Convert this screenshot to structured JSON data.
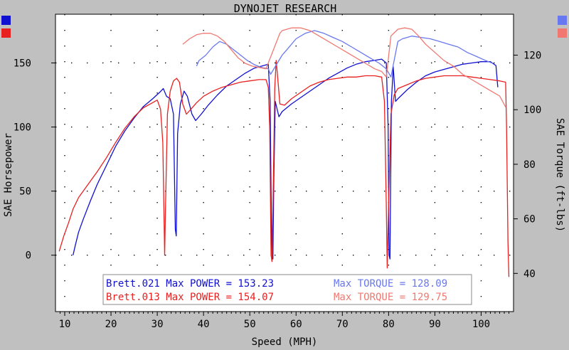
{
  "chart_data": {
    "type": "line",
    "title": "DYNOJET RESEARCH",
    "xlabel": "Speed (MPH)",
    "ylabel_left": "SAE Horsepower",
    "ylabel_right": "SAE Torque (ft-lbs)",
    "xlim": [
      8,
      107
    ],
    "ylim_left": [
      -44,
      188
    ],
    "ylim_right": [
      26,
      135
    ],
    "x_ticks": [
      10,
      20,
      30,
      40,
      50,
      60,
      70,
      80,
      90,
      100
    ],
    "y_ticks_left": [
      0,
      50,
      100,
      150
    ],
    "y_ticks_right": [
      40,
      60,
      80,
      100,
      120
    ],
    "grid": true,
    "colors": {
      "run021_power": "#1010d0",
      "run013_power": "#e82020",
      "run021_torque": "#6878f0",
      "run013_torque": "#f07870",
      "plot_bg": "#ffffff",
      "outer_bg": "#c0c0c0"
    },
    "legend": [
      {
        "run": "Brett.021",
        "power_text": "Max POWER = 153.23",
        "torque_text": "Max TORQUE = 128.09"
      },
      {
        "run": "Brett.013",
        "power_text": "Max POWER = 154.07",
        "torque_text": "Max TORQUE = 129.75"
      }
    ],
    "series": [
      {
        "axis": "left",
        "color": "#1010d0",
        "points": [
          [
            11.8,
            0
          ],
          [
            12.3,
            8
          ],
          [
            13,
            18
          ],
          [
            14,
            28
          ],
          [
            15.5,
            42
          ],
          [
            17,
            55
          ],
          [
            19,
            70
          ],
          [
            21,
            85
          ],
          [
            23,
            97
          ],
          [
            25,
            107
          ],
          [
            27,
            116
          ],
          [
            29,
            122
          ],
          [
            30.5,
            127
          ],
          [
            31.3,
            130
          ],
          [
            32,
            124
          ],
          [
            32.8,
            122
          ],
          [
            33.5,
            110
          ],
          [
            33.9,
            20
          ],
          [
            34.1,
            15
          ],
          [
            34.4,
            95
          ],
          [
            35,
            118
          ],
          [
            35.8,
            128
          ],
          [
            36.5,
            124
          ],
          [
            37.5,
            110
          ],
          [
            38.3,
            105
          ],
          [
            39.5,
            110
          ],
          [
            41,
            117
          ],
          [
            43,
            125
          ],
          [
            45,
            132
          ],
          [
            47,
            137
          ],
          [
            49,
            142
          ],
          [
            51,
            146
          ],
          [
            53,
            148
          ],
          [
            54,
            149
          ],
          [
            54.4,
            120
          ],
          [
            54.6,
            50
          ],
          [
            54.8,
            -2
          ],
          [
            55,
            -3
          ],
          [
            55.2,
            60
          ],
          [
            55.5,
            120
          ],
          [
            56.3,
            108
          ],
          [
            57,
            112
          ],
          [
            59,
            118
          ],
          [
            61,
            123
          ],
          [
            63,
            128
          ],
          [
            65,
            133
          ],
          [
            67,
            138
          ],
          [
            69,
            142
          ],
          [
            71,
            146
          ],
          [
            73,
            149
          ],
          [
            75,
            151
          ],
          [
            77,
            152
          ],
          [
            78.5,
            153
          ],
          [
            79.5,
            150
          ],
          [
            79.9,
            100
          ],
          [
            80.1,
            0
          ],
          [
            80.3,
            -3
          ],
          [
            80.6,
            120
          ],
          [
            81,
            147
          ],
          [
            81.5,
            120
          ],
          [
            82,
            122
          ],
          [
            84,
            129
          ],
          [
            86,
            135
          ],
          [
            88,
            140
          ],
          [
            90,
            143
          ],
          [
            92,
            145
          ],
          [
            94,
            147
          ],
          [
            96,
            149
          ],
          [
            98,
            150
          ],
          [
            100,
            151
          ],
          [
            102,
            151
          ],
          [
            103.2,
            148
          ],
          [
            103.6,
            131
          ]
        ]
      },
      {
        "axis": "left",
        "color": "#e82020",
        "points": [
          [
            8.8,
            3
          ],
          [
            9.8,
            15
          ],
          [
            10.8,
            25
          ],
          [
            11.8,
            36
          ],
          [
            13,
            45
          ],
          [
            15,
            55
          ],
          [
            17,
            65
          ],
          [
            19,
            76
          ],
          [
            21,
            88
          ],
          [
            23,
            99
          ],
          [
            25,
            108
          ],
          [
            27,
            115
          ],
          [
            29,
            119
          ],
          [
            30,
            121
          ],
          [
            30.7,
            114
          ],
          [
            31.2,
            88
          ],
          [
            31.6,
            0
          ],
          [
            31.8,
            40
          ],
          [
            32.2,
            110
          ],
          [
            32.8,
            128
          ],
          [
            33.5,
            136
          ],
          [
            34.2,
            138
          ],
          [
            34.8,
            135
          ],
          [
            35.5,
            118
          ],
          [
            36.3,
            110
          ],
          [
            37.3,
            114
          ],
          [
            38.5,
            119
          ],
          [
            40,
            124
          ],
          [
            42,
            128
          ],
          [
            44,
            131
          ],
          [
            46,
            133
          ],
          [
            48,
            135
          ],
          [
            50,
            136
          ],
          [
            52,
            137
          ],
          [
            53.5,
            137
          ],
          [
            54,
            131
          ],
          [
            54.3,
            100
          ],
          [
            54.6,
            0
          ],
          [
            54.8,
            -5
          ],
          [
            55.1,
            60
          ],
          [
            55.4,
            130
          ],
          [
            55.7,
            152
          ],
          [
            56,
            140
          ],
          [
            56.5,
            118
          ],
          [
            57.5,
            117
          ],
          [
            59,
            122
          ],
          [
            61,
            127
          ],
          [
            63,
            132
          ],
          [
            65,
            135
          ],
          [
            67,
            137
          ],
          [
            69,
            138
          ],
          [
            71,
            139
          ],
          [
            73,
            139
          ],
          [
            75,
            140
          ],
          [
            77,
            140
          ],
          [
            78.5,
            139
          ],
          [
            79.1,
            120
          ],
          [
            79.5,
            40
          ],
          [
            79.7,
            -10
          ],
          [
            80,
            40
          ],
          [
            80.5,
            110
          ],
          [
            81.2,
            125
          ],
          [
            82,
            130
          ],
          [
            84,
            133
          ],
          [
            86,
            136
          ],
          [
            88,
            138
          ],
          [
            90,
            139
          ],
          [
            92,
            140
          ],
          [
            94,
            140
          ],
          [
            96,
            140
          ],
          [
            98,
            139
          ],
          [
            100,
            138
          ],
          [
            102,
            137
          ],
          [
            104,
            136
          ],
          [
            105.3,
            135
          ],
          [
            105.5,
            100
          ],
          [
            105.8,
            10
          ],
          [
            106,
            -17
          ]
        ]
      },
      {
        "axis": "right",
        "color": "#6878f0",
        "points": [
          [
            38.5,
            116
          ],
          [
            39,
            118
          ],
          [
            40.5,
            120
          ],
          [
            42,
            123
          ],
          [
            43.5,
            125
          ],
          [
            45,
            124
          ],
          [
            46.5,
            122
          ],
          [
            48,
            120
          ],
          [
            49.5,
            118
          ],
          [
            51,
            116.5
          ],
          [
            52.5,
            115.5
          ],
          [
            54,
            115
          ],
          [
            54.5,
            113
          ],
          [
            57,
            120
          ],
          [
            58,
            122
          ],
          [
            60,
            126
          ],
          [
            62,
            128
          ],
          [
            64,
            129
          ],
          [
            66,
            128
          ],
          [
            68,
            126.5
          ],
          [
            70,
            125
          ],
          [
            72,
            123
          ],
          [
            74,
            121
          ],
          [
            76,
            119
          ],
          [
            78,
            117
          ],
          [
            79.5,
            115
          ],
          [
            80.5,
            112
          ],
          [
            82,
            125
          ],
          [
            83,
            126
          ],
          [
            85,
            127
          ],
          [
            87,
            126.5
          ],
          [
            89,
            126
          ],
          [
            91,
            125
          ],
          [
            93,
            124
          ],
          [
            95,
            123
          ],
          [
            97,
            121
          ],
          [
            99,
            119.5
          ],
          [
            101,
            118
          ],
          [
            102.5,
            117
          ]
        ]
      },
      {
        "axis": "right",
        "color": "#f07870",
        "points": [
          [
            35.5,
            124
          ],
          [
            37,
            126
          ],
          [
            38.5,
            127.5
          ],
          [
            40,
            128
          ],
          [
            41.5,
            128
          ],
          [
            43,
            127
          ],
          [
            44.5,
            125
          ],
          [
            46,
            122
          ],
          [
            47.5,
            119
          ],
          [
            49,
            117
          ],
          [
            50.5,
            116
          ],
          [
            52,
            115.5
          ],
          [
            53.5,
            115
          ],
          [
            56.5,
            128
          ],
          [
            57,
            129
          ],
          [
            59,
            130
          ],
          [
            61,
            130
          ],
          [
            63,
            129
          ],
          [
            65,
            127
          ],
          [
            67,
            125
          ],
          [
            69,
            123
          ],
          [
            71,
            121
          ],
          [
            73,
            119
          ],
          [
            75,
            117
          ],
          [
            77,
            115
          ],
          [
            78.5,
            114
          ],
          [
            79.5,
            112
          ],
          [
            80.5,
            127
          ],
          [
            82,
            129.5
          ],
          [
            83.5,
            130
          ],
          [
            85,
            129.5
          ],
          [
            86.5,
            127
          ],
          [
            88,
            124
          ],
          [
            90,
            121
          ],
          [
            92,
            118
          ],
          [
            94,
            116
          ],
          [
            96,
            113
          ],
          [
            98,
            111
          ],
          [
            100,
            109
          ],
          [
            102,
            107
          ],
          [
            104,
            105
          ],
          [
            105.3,
            101
          ]
        ]
      }
    ]
  }
}
